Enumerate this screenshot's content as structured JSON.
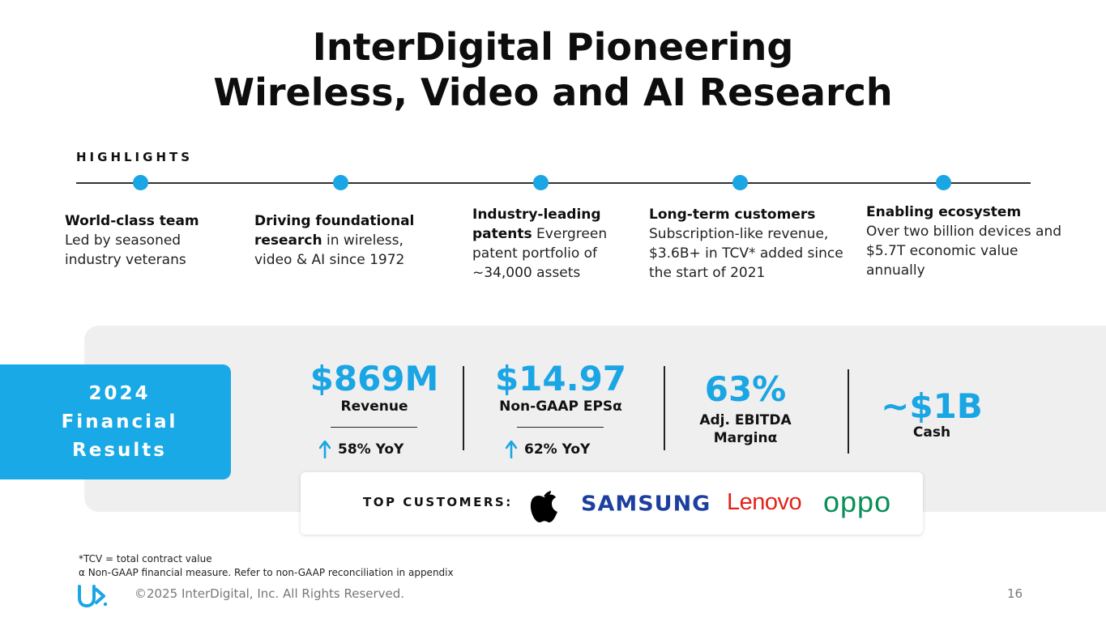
{
  "title": {
    "line1": "InterDigital Pioneering",
    "line2": "Wireless, Video and AI Research"
  },
  "highlights": {
    "label": "HIGHLIGHTS",
    "items": [
      {
        "bold": "World-class team",
        "text": "Led by seasoned industry veterans"
      },
      {
        "bold": "Driving foundational research",
        "text": " in wireless, video & AI since 1972"
      },
      {
        "bold": "Industry-leading patents",
        "text": " Evergreen patent portfolio of ~34,000 assets"
      },
      {
        "bold": "Long-term customers",
        "text": "Subscription-like revenue, $3.6B+ in TCV* added since the start of 2021"
      },
      {
        "bold": "Enabling ecosystem",
        "text": "Over two billion devices and $5.7T economic value annually"
      }
    ]
  },
  "financials": {
    "box_line1": "2024",
    "box_line2": "Financial",
    "box_line3": "Results",
    "metrics": [
      {
        "value": "$869M",
        "label": "Revenue",
        "yoy": "58% YoY"
      },
      {
        "value": "$14.97",
        "label": "Non-GAAP EPSα",
        "yoy": "62% YoY"
      },
      {
        "value": "63%",
        "label_line1": "Adj. EBITDA",
        "label_line2": "Marginα"
      },
      {
        "value": "~$1B",
        "label": "Cash"
      }
    ]
  },
  "customers": {
    "label": "TOP CUSTOMERS:",
    "logos": [
      "apple-logo",
      "samsung-logo",
      "lenovo-logo",
      "oppo-logo"
    ],
    "samsung": "SAMSUNG",
    "lenovo": "Lenovo",
    "oppo": "oppo"
  },
  "footnotes": {
    "tcv": "*TCV = total contract value",
    "nongaap": "α Non-GAAP financial measure. Refer to non-GAAP reconciliation in appendix"
  },
  "footer": {
    "copyright": "©2025 InterDigital, Inc. All Rights Reserved.",
    "page_number": "16"
  },
  "colors": {
    "accent": "#1aa5e4",
    "panel": "#efefef",
    "samsung": "#1d3fa0",
    "lenovo": "#e2231a",
    "oppo": "#0a8f5a"
  }
}
